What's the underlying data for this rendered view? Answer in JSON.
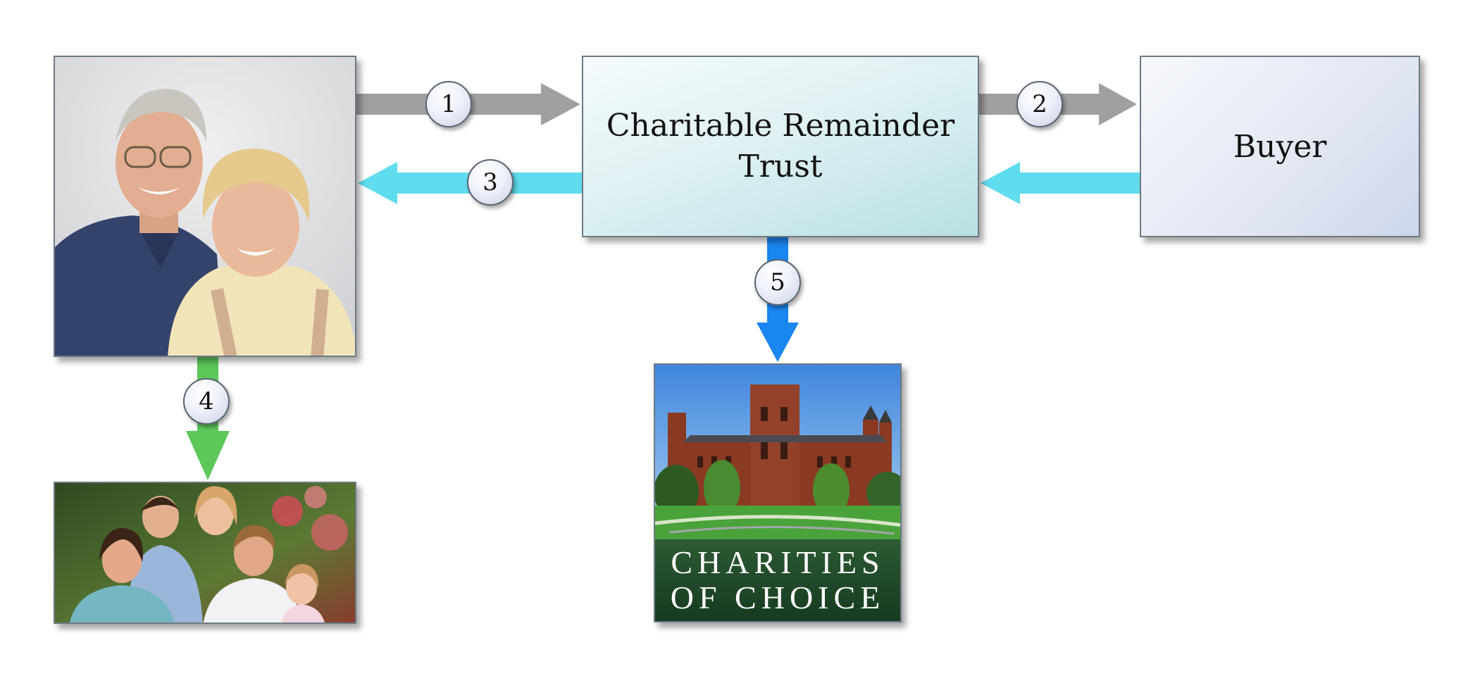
{
  "trust": {
    "line1": "Charitable Remainder",
    "line2": "Trust"
  },
  "buyer": {
    "label": "Buyer"
  },
  "steps": {
    "s1": "1",
    "s2": "2",
    "s3": "3",
    "s4": "4",
    "s5": "5"
  },
  "charity": {
    "line1": "CHARITIES",
    "line2": "OF CHOICE"
  },
  "colors": {
    "gray_arrow": "#a0a0a0",
    "cyan_arrow": "#5fdcee",
    "blue_arrow": "#1a86f0",
    "green_arrow": "#5cc85a"
  }
}
